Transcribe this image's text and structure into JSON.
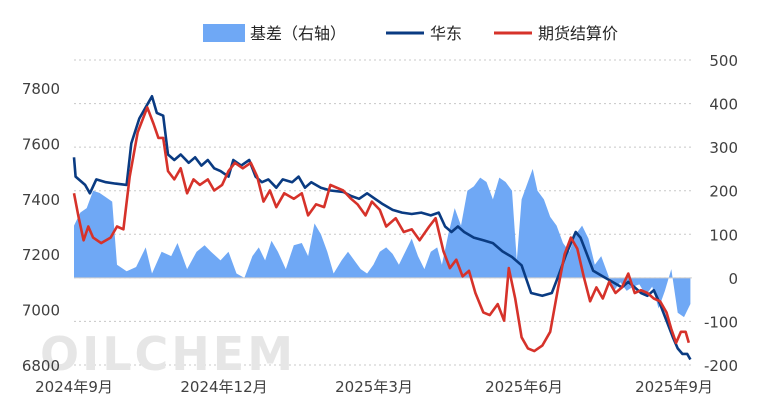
{
  "watermark": "OILCHEM",
  "legend": {
    "basis_label": "基差（右轴）",
    "east_label": "华东",
    "futures_label": "期货结算价"
  },
  "colors": {
    "basis": "#6fa8f5",
    "east": "#0a3b82",
    "futures": "#d6322a"
  },
  "chart_data": {
    "type": "line",
    "left_axis": {
      "ylim": [
        6800,
        7800
      ],
      "ticks": [
        6800,
        7000,
        7200,
        7400,
        7600,
        7800
      ]
    },
    "right_axis": {
      "ylim": [
        -200,
        500
      ],
      "ticks": [
        -200,
        -100,
        0,
        100,
        200,
        300,
        400,
        500
      ]
    },
    "x_tick_labels": [
      "2024年9月",
      "2024年12月",
      "2025年3月",
      "2025年6月",
      "2025年9月"
    ],
    "grid": true,
    "legend_position": "top",
    "series": [
      {
        "name": "华东",
        "axis": "left",
        "points": [
          [
            "2024-08-20",
            7550
          ],
          [
            "2024-08-21",
            7480
          ],
          [
            "2024-08-27",
            7450
          ],
          [
            "2024-08-30",
            7420
          ],
          [
            "2024-09-03",
            7470
          ],
          [
            "2024-09-09",
            7460
          ],
          [
            "2024-09-15",
            7455
          ],
          [
            "2024-09-22",
            7450
          ],
          [
            "2024-09-25",
            7600
          ],
          [
            "2024-09-30",
            7690
          ],
          [
            "2024-10-08",
            7770
          ],
          [
            "2024-10-11",
            7710
          ],
          [
            "2024-10-15",
            7700
          ],
          [
            "2024-10-18",
            7560
          ],
          [
            "2024-10-22",
            7540
          ],
          [
            "2024-10-26",
            7560
          ],
          [
            "2024-10-31",
            7530
          ],
          [
            "2024-11-04",
            7550
          ],
          [
            "2024-11-08",
            7520
          ],
          [
            "2024-11-12",
            7540
          ],
          [
            "2024-11-16",
            7510
          ],
          [
            "2024-11-20",
            7500
          ],
          [
            "2024-11-25",
            7480
          ],
          [
            "2024-11-28",
            7540
          ],
          [
            "2024-12-03",
            7520
          ],
          [
            "2024-12-08",
            7540
          ],
          [
            "2024-12-12",
            7480
          ],
          [
            "2024-12-16",
            7460
          ],
          [
            "2024-12-20",
            7470
          ],
          [
            "2024-12-25",
            7440
          ],
          [
            "2024-12-29",
            7470
          ],
          [
            "2025-01-04",
            7460
          ],
          [
            "2025-01-08",
            7480
          ],
          [
            "2025-01-12",
            7440
          ],
          [
            "2025-01-16",
            7460
          ],
          [
            "2025-01-22",
            7440
          ],
          [
            "2025-01-28",
            7430
          ],
          [
            "2025-02-05",
            7425
          ],
          [
            "2025-02-10",
            7410
          ],
          [
            "2025-02-15",
            7400
          ],
          [
            "2025-02-20",
            7420
          ],
          [
            "2025-02-25",
            7400
          ],
          [
            "2025-03-02",
            7380
          ],
          [
            "2025-03-08",
            7360
          ],
          [
            "2025-03-14",
            7350
          ],
          [
            "2025-03-20",
            7345
          ],
          [
            "2025-03-26",
            7350
          ],
          [
            "2025-04-01",
            7340
          ],
          [
            "2025-04-06",
            7350
          ],
          [
            "2025-04-10",
            7300
          ],
          [
            "2025-04-14",
            7280
          ],
          [
            "2025-04-18",
            7300
          ],
          [
            "2025-04-22",
            7280
          ],
          [
            "2025-04-28",
            7260
          ],
          [
            "2025-05-04",
            7250
          ],
          [
            "2025-05-10",
            7240
          ],
          [
            "2025-05-16",
            7210
          ],
          [
            "2025-05-22",
            7190
          ],
          [
            "2025-05-28",
            7160
          ],
          [
            "2025-06-03",
            7060
          ],
          [
            "2025-06-10",
            7050
          ],
          [
            "2025-06-16",
            7060
          ],
          [
            "2025-06-20",
            7120
          ],
          [
            "2025-06-25",
            7200
          ],
          [
            "2025-07-01",
            7280
          ],
          [
            "2025-07-04",
            7260
          ],
          [
            "2025-07-08",
            7200
          ],
          [
            "2025-07-12",
            7140
          ],
          [
            "2025-07-18",
            7120
          ],
          [
            "2025-07-24",
            7100
          ],
          [
            "2025-07-30",
            7080
          ],
          [
            "2025-08-03",
            7100
          ],
          [
            "2025-08-07",
            7080
          ],
          [
            "2025-08-11",
            7060
          ],
          [
            "2025-08-15",
            7050
          ],
          [
            "2025-08-19",
            7070
          ],
          [
            "2025-08-23",
            7020
          ],
          [
            "2025-08-27",
            6960
          ],
          [
            "2025-08-31",
            6900
          ],
          [
            "2025-09-03",
            6860
          ],
          [
            "2025-09-06",
            6840
          ],
          [
            "2025-09-09",
            6840
          ],
          [
            "2025-09-11",
            6820
          ]
        ]
      },
      {
        "name": "期货结算价",
        "axis": "left",
        "points": [
          [
            "2024-08-20",
            7420
          ],
          [
            "2024-08-23",
            7330
          ],
          [
            "2024-08-26",
            7250
          ],
          [
            "2024-08-29",
            7300
          ],
          [
            "2024-09-01",
            7260
          ],
          [
            "2024-09-06",
            7240
          ],
          [
            "2024-09-12",
            7260
          ],
          [
            "2024-09-16",
            7300
          ],
          [
            "2024-09-20",
            7290
          ],
          [
            "2024-09-24",
            7480
          ],
          [
            "2024-09-29",
            7640
          ],
          [
            "2024-10-05",
            7730
          ],
          [
            "2024-10-09",
            7670
          ],
          [
            "2024-10-12",
            7620
          ],
          [
            "2024-10-15",
            7620
          ],
          [
            "2024-10-18",
            7500
          ],
          [
            "2024-10-22",
            7470
          ],
          [
            "2024-10-26",
            7510
          ],
          [
            "2024-10-30",
            7420
          ],
          [
            "2024-11-03",
            7470
          ],
          [
            "2024-11-07",
            7450
          ],
          [
            "2024-11-12",
            7470
          ],
          [
            "2024-11-16",
            7430
          ],
          [
            "2024-11-21",
            7450
          ],
          [
            "2024-11-25",
            7500
          ],
          [
            "2024-11-29",
            7530
          ],
          [
            "2024-12-04",
            7510
          ],
          [
            "2024-12-09",
            7530
          ],
          [
            "2024-12-13",
            7480
          ],
          [
            "2024-12-17",
            7390
          ],
          [
            "2024-12-21",
            7430
          ],
          [
            "2024-12-25",
            7370
          ],
          [
            "2024-12-30",
            7420
          ],
          [
            "2025-01-05",
            7400
          ],
          [
            "2025-01-10",
            7420
          ],
          [
            "2025-01-14",
            7340
          ],
          [
            "2025-01-19",
            7380
          ],
          [
            "2025-01-24",
            7370
          ],
          [
            "2025-01-28",
            7450
          ],
          [
            "2025-02-05",
            7430
          ],
          [
            "2025-02-10",
            7400
          ],
          [
            "2025-02-14",
            7380
          ],
          [
            "2025-02-19",
            7340
          ],
          [
            "2025-02-23",
            7390
          ],
          [
            "2025-02-28",
            7360
          ],
          [
            "2025-03-04",
            7300
          ],
          [
            "2025-03-10",
            7330
          ],
          [
            "2025-03-15",
            7280
          ],
          [
            "2025-03-20",
            7290
          ],
          [
            "2025-03-25",
            7250
          ],
          [
            "2025-03-31",
            7300
          ],
          [
            "2025-04-04",
            7330
          ],
          [
            "2025-04-09",
            7210
          ],
          [
            "2025-04-13",
            7150
          ],
          [
            "2025-04-17",
            7180
          ],
          [
            "2025-04-21",
            7120
          ],
          [
            "2025-04-25",
            7140
          ],
          [
            "2025-04-29",
            7060
          ],
          [
            "2025-05-04",
            6990
          ],
          [
            "2025-05-08",
            6980
          ],
          [
            "2025-05-13",
            7020
          ],
          [
            "2025-05-17",
            6960
          ],
          [
            "2025-05-20",
            7150
          ],
          [
            "2025-05-24",
            7040
          ],
          [
            "2025-05-28",
            6900
          ],
          [
            "2025-06-01",
            6860
          ],
          [
            "2025-06-05",
            6850
          ],
          [
            "2025-06-10",
            6870
          ],
          [
            "2025-06-15",
            6920
          ],
          [
            "2025-06-20",
            7080
          ],
          [
            "2025-06-24",
            7200
          ],
          [
            "2025-06-28",
            7260
          ],
          [
            "2025-07-02",
            7220
          ],
          [
            "2025-07-06",
            7120
          ],
          [
            "2025-07-10",
            7030
          ],
          [
            "2025-07-14",
            7080
          ],
          [
            "2025-07-18",
            7040
          ],
          [
            "2025-07-22",
            7100
          ],
          [
            "2025-07-26",
            7060
          ],
          [
            "2025-07-30",
            7080
          ],
          [
            "2025-08-03",
            7130
          ],
          [
            "2025-08-07",
            7060
          ],
          [
            "2025-08-11",
            7070
          ],
          [
            "2025-08-15",
            7060
          ],
          [
            "2025-08-19",
            7040
          ],
          [
            "2025-08-23",
            7030
          ],
          [
            "2025-08-27",
            6990
          ],
          [
            "2025-08-30",
            6930
          ],
          [
            "2025-09-02",
            6880
          ],
          [
            "2025-09-05",
            6920
          ],
          [
            "2025-09-08",
            6920
          ],
          [
            "2025-09-10",
            6880
          ]
        ]
      },
      {
        "name": "基差（右轴）",
        "axis": "right",
        "type": "area",
        "points": [
          [
            "2024-08-20",
            120
          ],
          [
            "2024-08-24",
            150
          ],
          [
            "2024-08-28",
            160
          ],
          [
            "2024-09-01",
            200
          ],
          [
            "2024-09-05",
            195
          ],
          [
            "2024-09-09",
            185
          ],
          [
            "2024-09-13",
            175
          ],
          [
            "2024-09-16",
            30
          ],
          [
            "2024-09-22",
            15
          ],
          [
            "2024-09-28",
            25
          ],
          [
            "2024-10-04",
            70
          ],
          [
            "2024-10-08",
            10
          ],
          [
            "2024-10-14",
            60
          ],
          [
            "2024-10-20",
            50
          ],
          [
            "2024-10-24",
            80
          ],
          [
            "2024-10-30",
            20
          ],
          [
            "2024-11-05",
            60
          ],
          [
            "2024-11-10",
            75
          ],
          [
            "2024-11-14",
            60
          ],
          [
            "2024-11-20",
            40
          ],
          [
            "2024-11-25",
            60
          ],
          [
            "2024-11-30",
            10
          ],
          [
            "2024-12-05",
            0
          ],
          [
            "2024-12-10",
            50
          ],
          [
            "2024-12-14",
            70
          ],
          [
            "2024-12-18",
            40
          ],
          [
            "2024-12-22",
            85
          ],
          [
            "2024-12-26",
            60
          ],
          [
            "2024-12-31",
            20
          ],
          [
            "2025-01-05",
            75
          ],
          [
            "2025-01-10",
            80
          ],
          [
            "2025-01-14",
            50
          ],
          [
            "2025-01-18",
            125
          ],
          [
            "2025-01-22",
            100
          ],
          [
            "2025-01-26",
            60
          ],
          [
            "2025-01-30",
            10
          ],
          [
            "2025-02-04",
            40
          ],
          [
            "2025-02-08",
            60
          ],
          [
            "2025-02-12",
            40
          ],
          [
            "2025-02-16",
            20
          ],
          [
            "2025-02-20",
            10
          ],
          [
            "2025-02-24",
            30
          ],
          [
            "2025-02-28",
            60
          ],
          [
            "2025-03-04",
            70
          ],
          [
            "2025-03-08",
            55
          ],
          [
            "2025-03-12",
            30
          ],
          [
            "2025-03-16",
            60
          ],
          [
            "2025-03-20",
            90
          ],
          [
            "2025-03-24",
            50
          ],
          [
            "2025-03-28",
            20
          ],
          [
            "2025-04-01",
            60
          ],
          [
            "2025-04-05",
            70
          ],
          [
            "2025-04-08",
            30
          ],
          [
            "2025-04-12",
            100
          ],
          [
            "2025-04-16",
            160
          ],
          [
            "2025-04-20",
            120
          ],
          [
            "2025-04-24",
            200
          ],
          [
            "2025-04-28",
            210
          ],
          [
            "2025-05-02",
            230
          ],
          [
            "2025-05-06",
            220
          ],
          [
            "2025-05-10",
            180
          ],
          [
            "2025-05-14",
            230
          ],
          [
            "2025-05-18",
            220
          ],
          [
            "2025-05-22",
            200
          ],
          [
            "2025-05-25",
            40
          ],
          [
            "2025-05-28",
            180
          ],
          [
            "2025-06-01",
            220
          ],
          [
            "2025-06-04",
            250
          ],
          [
            "2025-06-07",
            200
          ],
          [
            "2025-06-11",
            180
          ],
          [
            "2025-06-15",
            140
          ],
          [
            "2025-06-19",
            120
          ],
          [
            "2025-06-23",
            80
          ],
          [
            "2025-06-27",
            60
          ],
          [
            "2025-07-01",
            100
          ],
          [
            "2025-07-05",
            120
          ],
          [
            "2025-07-09",
            90
          ],
          [
            "2025-07-13",
            30
          ],
          [
            "2025-07-17",
            50
          ],
          [
            "2025-07-21",
            10
          ],
          [
            "2025-07-25",
            -30
          ],
          [
            "2025-07-29",
            -10
          ],
          [
            "2025-08-02",
            -30
          ],
          [
            "2025-08-06",
            -20
          ],
          [
            "2025-08-10",
            -15
          ],
          [
            "2025-08-14",
            -40
          ],
          [
            "2025-08-18",
            -20
          ],
          [
            "2025-08-22",
            -70
          ],
          [
            "2025-08-26",
            -30
          ],
          [
            "2025-08-30",
            20
          ],
          [
            "2025-09-03",
            -80
          ],
          [
            "2025-09-07",
            -90
          ],
          [
            "2025-09-11",
            -60
          ]
        ]
      }
    ]
  }
}
